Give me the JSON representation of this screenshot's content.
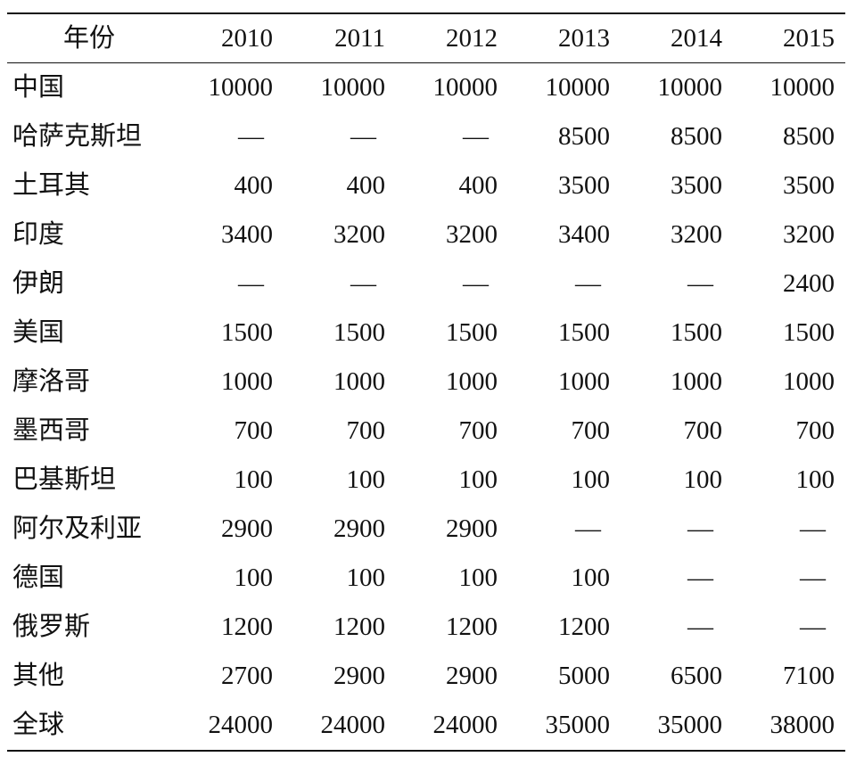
{
  "table": {
    "header": {
      "label": "年份",
      "years": [
        "2010",
        "2011",
        "2012",
        "2013",
        "2014",
        "2015"
      ]
    },
    "rows": [
      {
        "label": "中国",
        "values": [
          "10000",
          "10000",
          "10000",
          "10000",
          "10000",
          "10000"
        ]
      },
      {
        "label": "哈萨克斯坦",
        "values": [
          "—",
          "—",
          "—",
          "8500",
          "8500",
          "8500"
        ]
      },
      {
        "label": "土耳其",
        "values": [
          "400",
          "400",
          "400",
          "3500",
          "3500",
          "3500"
        ]
      },
      {
        "label": "印度",
        "values": [
          "3400",
          "3200",
          "3200",
          "3400",
          "3200",
          "3200"
        ]
      },
      {
        "label": "伊朗",
        "values": [
          "—",
          "—",
          "—",
          "—",
          "—",
          "2400"
        ]
      },
      {
        "label": "美国",
        "values": [
          "1500",
          "1500",
          "1500",
          "1500",
          "1500",
          "1500"
        ]
      },
      {
        "label": "摩洛哥",
        "values": [
          "1000",
          "1000",
          "1000",
          "1000",
          "1000",
          "1000"
        ]
      },
      {
        "label": "墨西哥",
        "values": [
          "700",
          "700",
          "700",
          "700",
          "700",
          "700"
        ]
      },
      {
        "label": "巴基斯坦",
        "values": [
          "100",
          "100",
          "100",
          "100",
          "100",
          "100"
        ]
      },
      {
        "label": "阿尔及利亚",
        "values": [
          "2900",
          "2900",
          "2900",
          "—",
          "—",
          "—"
        ]
      },
      {
        "label": "德国",
        "values": [
          "100",
          "100",
          "100",
          "100",
          "—",
          "—"
        ]
      },
      {
        "label": "俄罗斯",
        "values": [
          "1200",
          "1200",
          "1200",
          "1200",
          "—",
          "—"
        ]
      },
      {
        "label": "其他",
        "values": [
          "2700",
          "2900",
          "2900",
          "5000",
          "6500",
          "7100"
        ]
      },
      {
        "label": "全球",
        "values": [
          "24000",
          "24000",
          "24000",
          "35000",
          "35000",
          "38000"
        ]
      }
    ]
  }
}
